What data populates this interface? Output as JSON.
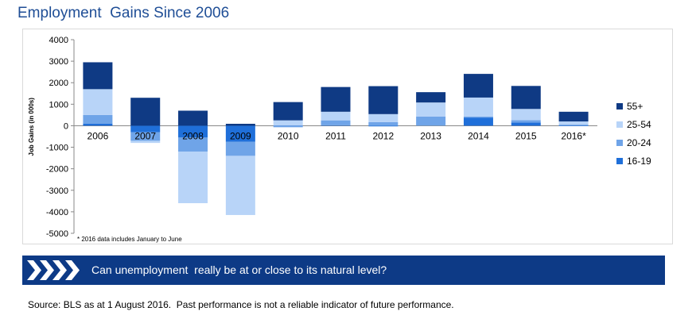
{
  "page": {
    "title": "Employment  Gains Since 2006",
    "banner_text": "Can unemployment  really be at or close to its natural level?",
    "source_note": "Source: BLS as at 1 August 2016.  Past performance is not a reliable indicator of future performance."
  },
  "chart_data": {
    "type": "bar",
    "stacked": true,
    "categories": [
      "2006",
      "2007",
      "2008",
      "2009",
      "2010",
      "2011",
      "2012",
      "2013",
      "2014",
      "2015",
      "2016*"
    ],
    "series": [
      {
        "name": "16-19",
        "color": "#1f6fd9",
        "values": [
          100,
          -300,
          -550,
          -750,
          -20,
          20,
          -30,
          0,
          380,
          150,
          -10
        ]
      },
      {
        "name": "20-24",
        "color": "#6fa4e8",
        "values": [
          400,
          -400,
          -650,
          -650,
          -50,
          230,
          170,
          430,
          50,
          110,
          50
        ]
      },
      {
        "name": "25-54",
        "color": "#b8d4f8",
        "values": [
          1200,
          -100,
          -2400,
          -2750,
          250,
          400,
          370,
          650,
          880,
          520,
          150
        ]
      },
      {
        "name": "55+",
        "color": "#0f3a84",
        "values": [
          1250,
          1300,
          700,
          90,
          850,
          1150,
          1300,
          480,
          1100,
          1070,
          450
        ]
      }
    ],
    "ylabel": "Job Gains (in 000s)",
    "ylim": [
      -5000,
      4000
    ],
    "yticks": [
      4000,
      3000,
      2000,
      1000,
      0,
      -1000,
      -2000,
      -3000,
      -4000,
      -5000
    ],
    "legend_position": "right",
    "footnote": "* 2016 data includes January to June",
    "grid": false
  }
}
